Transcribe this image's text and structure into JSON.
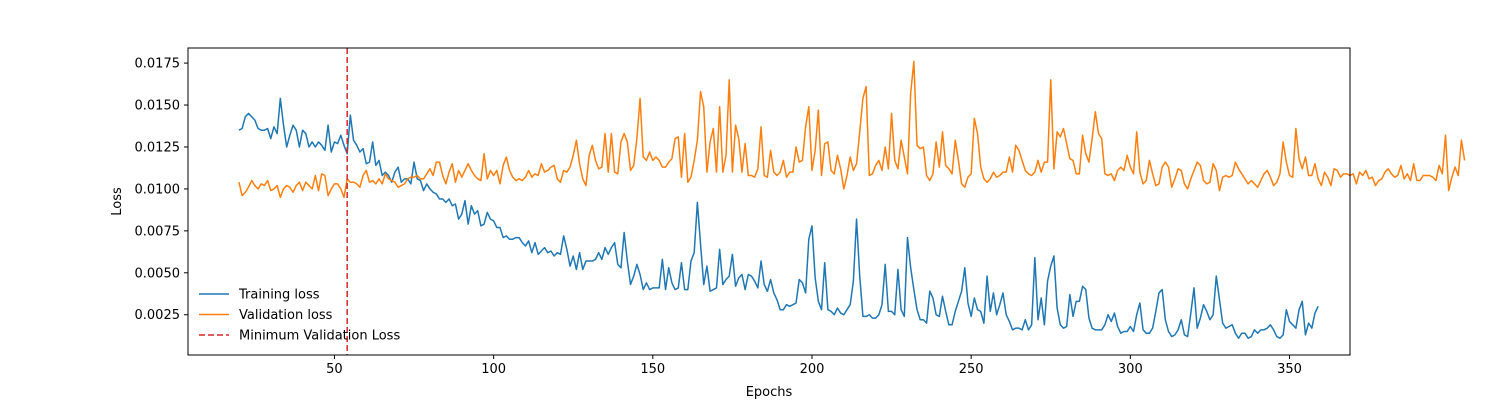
{
  "chart_data": {
    "type": "line",
    "title": "",
    "xlabel": "Epochs",
    "ylabel": "Loss",
    "xlim": [
      4,
      369
    ],
    "ylim": [
      0.0001,
      0.0184
    ],
    "x_ticks": [
      50,
      100,
      150,
      200,
      250,
      300,
      350
    ],
    "x_tick_labels": [
      "50",
      "100",
      "150",
      "200",
      "250",
      "300",
      "350"
    ],
    "y_ticks": [
      0.0025,
      0.005,
      0.0075,
      0.01,
      0.0125,
      0.015,
      0.0175
    ],
    "y_tick_labels": [
      "0.0025",
      "0.0050",
      "0.0075",
      "0.0100",
      "0.0125",
      "0.0150",
      "0.0175"
    ],
    "grid": false,
    "legend_position": "lower-left",
    "x_start": 20,
    "series": [
      {
        "name": "Training loss",
        "color": "#1f77b4",
        "values": [
          0.0135,
          0.0136,
          0.0143,
          0.0145,
          0.0143,
          0.0141,
          0.0136,
          0.0135,
          0.0135,
          0.0136,
          0.013,
          0.0137,
          0.0133,
          0.0154,
          0.0138,
          0.0125,
          0.0132,
          0.0138,
          0.0135,
          0.0125,
          0.0135,
          0.0133,
          0.0125,
          0.0128,
          0.0125,
          0.0128,
          0.0126,
          0.0123,
          0.0138,
          0.0122,
          0.0128,
          0.0127,
          0.0132,
          0.0126,
          0.0121,
          0.0144,
          0.0129,
          0.0126,
          0.0122,
          0.0124,
          0.0115,
          0.0116,
          0.0128,
          0.0114,
          0.0117,
          0.0108,
          0.011,
          0.0108,
          0.0104,
          0.011,
          0.0113,
          0.0104,
          0.0106,
          0.0106,
          0.0103,
          0.0116,
          0.0106,
          0.0105,
          0.0099,
          0.0103,
          0.01,
          0.0098,
          0.0097,
          0.0094,
          0.0094,
          0.0092,
          0.0094,
          0.009,
          0.0091,
          0.0082,
          0.0085,
          0.0093,
          0.0079,
          0.009,
          0.0085,
          0.0087,
          0.0078,
          0.0079,
          0.0086,
          0.0082,
          0.0081,
          0.0077,
          0.0077,
          0.0071,
          0.0072,
          0.007,
          0.007,
          0.0071,
          0.0071,
          0.0068,
          0.0066,
          0.0069,
          0.0062,
          0.0068,
          0.0061,
          0.0063,
          0.0065,
          0.0062,
          0.0063,
          0.006,
          0.0062,
          0.0061,
          0.0072,
          0.0064,
          0.0054,
          0.006,
          0.0052,
          0.0062,
          0.0052,
          0.0057,
          0.0057,
          0.0057,
          0.0058,
          0.0062,
          0.0058,
          0.0065,
          0.0061,
          0.0065,
          0.0068,
          0.0055,
          0.0053,
          0.0074,
          0.0057,
          0.0043,
          0.0048,
          0.0055,
          0.0049,
          0.004,
          0.0044,
          0.004,
          0.0041,
          0.0041,
          0.0041,
          0.0058,
          0.004,
          0.0053,
          0.0044,
          0.004,
          0.0041,
          0.0056,
          0.004,
          0.004,
          0.0057,
          0.0062,
          0.0092,
          0.0067,
          0.0043,
          0.0054,
          0.0039,
          0.004,
          0.0041,
          0.0064,
          0.0043,
          0.0046,
          0.0048,
          0.0061,
          0.0042,
          0.0047,
          0.0049,
          0.004,
          0.0049,
          0.0048,
          0.0045,
          0.0041,
          0.0057,
          0.0043,
          0.0039,
          0.0046,
          0.0038,
          0.0034,
          0.0028,
          0.0028,
          0.0031,
          0.003,
          0.0031,
          0.0032,
          0.0046,
          0.0044,
          0.0038,
          0.007,
          0.0078,
          0.0047,
          0.0033,
          0.0028,
          0.0056,
          0.0028,
          0.0027,
          0.0025,
          0.0029,
          0.0026,
          0.0025,
          0.0028,
          0.0031,
          0.0045,
          0.0082,
          0.0048,
          0.0024,
          0.0024,
          0.0025,
          0.0023,
          0.0023,
          0.0025,
          0.0031,
          0.0055,
          0.0027,
          0.0027,
          0.0025,
          0.0052,
          0.0028,
          0.0024,
          0.0071,
          0.0053,
          0.004,
          0.0028,
          0.0022,
          0.0022,
          0.002,
          0.0039,
          0.0035,
          0.0025,
          0.0024,
          0.0036,
          0.0027,
          0.0019,
          0.0019,
          0.0027,
          0.0033,
          0.0039,
          0.0053,
          0.0032,
          0.0024,
          0.0035,
          0.0028,
          0.0027,
          0.002,
          0.0048,
          0.0027,
          0.0038,
          0.0025,
          0.0031,
          0.0038,
          0.0025,
          0.0021,
          0.0016,
          0.0017,
          0.0017,
          0.0016,
          0.0022,
          0.0016,
          0.0019,
          0.0059,
          0.0022,
          0.0035,
          0.0019,
          0.0045,
          0.0054,
          0.006,
          0.0029,
          0.0019,
          0.0017,
          0.0018,
          0.0037,
          0.0024,
          0.0033,
          0.0033,
          0.0042,
          0.004,
          0.0023,
          0.0017,
          0.0016,
          0.0016,
          0.0016,
          0.0019,
          0.0025,
          0.0021,
          0.0026,
          0.0018,
          0.0014,
          0.0015,
          0.0015,
          0.0018,
          0.0015,
          0.0025,
          0.0032,
          0.0016,
          0.0014,
          0.0014,
          0.0017,
          0.0027,
          0.0038,
          0.004,
          0.0022,
          0.0015,
          0.0012,
          0.0013,
          0.0016,
          0.0022,
          0.0013,
          0.0012,
          0.0026,
          0.0041,
          0.0017,
          0.0023,
          0.0031,
          0.0027,
          0.0022,
          0.0025,
          0.0048,
          0.0034,
          0.002,
          0.0017,
          0.0018,
          0.0019,
          0.0014,
          0.0011,
          0.0014,
          0.0014,
          0.0011,
          0.0012,
          0.0016,
          0.0014,
          0.0016,
          0.0016,
          0.0017,
          0.0019,
          0.0016,
          0.0012,
          0.0011,
          0.0013,
          0.0028,
          0.0021,
          0.0019,
          0.0017,
          0.0028,
          0.0033,
          0.0013,
          0.002,
          0.0017,
          0.0026,
          0.003
        ]
      },
      {
        "name": "Validation loss",
        "color": "#ff7f0e",
        "values": [
          0.0104,
          0.0096,
          0.0098,
          0.0101,
          0.0105,
          0.0102,
          0.01,
          0.0103,
          0.0102,
          0.0105,
          0.0099,
          0.01,
          0.0102,
          0.0095,
          0.01,
          0.0102,
          0.0101,
          0.0098,
          0.0102,
          0.0104,
          0.0099,
          0.0104,
          0.0102,
          0.01,
          0.0108,
          0.0099,
          0.0109,
          0.0108,
          0.0096,
          0.01,
          0.0103,
          0.0103,
          0.01,
          0.0095,
          0.0106,
          0.0104,
          0.0104,
          0.0103,
          0.0101,
          0.0108,
          0.0111,
          0.0104,
          0.0105,
          0.0103,
          0.0106,
          0.0103,
          0.0109,
          0.0106,
          0.0105,
          0.0104,
          0.0101,
          0.0102,
          0.0103,
          0.0106,
          0.0107,
          0.0107,
          0.0108,
          0.0106,
          0.0106,
          0.0109,
          0.0112,
          0.0108,
          0.0116,
          0.0116,
          0.0108,
          0.0103,
          0.011,
          0.0115,
          0.0104,
          0.0111,
          0.0107,
          0.0111,
          0.0115,
          0.0111,
          0.0108,
          0.0106,
          0.0105,
          0.0121,
          0.0106,
          0.0111,
          0.0108,
          0.0111,
          0.0103,
          0.0114,
          0.0119,
          0.0111,
          0.0107,
          0.0105,
          0.0106,
          0.0105,
          0.0107,
          0.0111,
          0.0107,
          0.0109,
          0.0108,
          0.0115,
          0.011,
          0.0111,
          0.0113,
          0.0114,
          0.0106,
          0.0104,
          0.0111,
          0.011,
          0.0113,
          0.012,
          0.0129,
          0.0115,
          0.0106,
          0.0102,
          0.012,
          0.0126,
          0.0117,
          0.0112,
          0.0113,
          0.0133,
          0.011,
          0.0133,
          0.011,
          0.0109,
          0.0128,
          0.0133,
          0.0128,
          0.0111,
          0.0114,
          0.013,
          0.0154,
          0.0119,
          0.0117,
          0.0122,
          0.0117,
          0.0119,
          0.0117,
          0.0113,
          0.0113,
          0.0116,
          0.0118,
          0.013,
          0.0131,
          0.0107,
          0.0133,
          0.0104,
          0.0107,
          0.0117,
          0.0129,
          0.0158,
          0.0149,
          0.011,
          0.0128,
          0.0136,
          0.011,
          0.0149,
          0.011,
          0.012,
          0.0165,
          0.011,
          0.0138,
          0.013,
          0.011,
          0.0127,
          0.0108,
          0.0108,
          0.0107,
          0.0112,
          0.0137,
          0.0108,
          0.0107,
          0.0123,
          0.011,
          0.0108,
          0.011,
          0.0117,
          0.0107,
          0.011,
          0.011,
          0.0125,
          0.0116,
          0.0117,
          0.0137,
          0.0149,
          0.0111,
          0.0123,
          0.0147,
          0.0108,
          0.0127,
          0.0128,
          0.0111,
          0.0109,
          0.012,
          0.0112,
          0.01,
          0.0108,
          0.0119,
          0.0111,
          0.0115,
          0.0134,
          0.0154,
          0.0161,
          0.0108,
          0.0109,
          0.0114,
          0.0117,
          0.0111,
          0.0125,
          0.0112,
          0.0145,
          0.0117,
          0.0112,
          0.0129,
          0.0119,
          0.0109,
          0.0157,
          0.0176,
          0.0126,
          0.0124,
          0.0125,
          0.0108,
          0.0105,
          0.0109,
          0.0128,
          0.0113,
          0.0134,
          0.0114,
          0.0112,
          0.0109,
          0.0129,
          0.0117,
          0.0103,
          0.0101,
          0.0107,
          0.0109,
          0.0142,
          0.0133,
          0.0113,
          0.0106,
          0.0104,
          0.0106,
          0.011,
          0.0107,
          0.0108,
          0.011,
          0.011,
          0.0119,
          0.011,
          0.0126,
          0.0123,
          0.0117,
          0.0111,
          0.0109,
          0.0108,
          0.011,
          0.0117,
          0.011,
          0.0116,
          0.0116,
          0.0165,
          0.0112,
          0.0134,
          0.0131,
          0.0136,
          0.0127,
          0.0118,
          0.0117,
          0.0109,
          0.0109,
          0.0132,
          0.0121,
          0.0116,
          0.013,
          0.0146,
          0.0133,
          0.013,
          0.0109,
          0.0108,
          0.0109,
          0.0105,
          0.0111,
          0.0113,
          0.0111,
          0.012,
          0.0113,
          0.0109,
          0.0134,
          0.011,
          0.0103,
          0.0105,
          0.0117,
          0.0109,
          0.0102,
          0.0103,
          0.0113,
          0.0116,
          0.0113,
          0.0101,
          0.0106,
          0.0112,
          0.0111,
          0.0103,
          0.01,
          0.0106,
          0.0111,
          0.0116,
          0.0114,
          0.0105,
          0.0103,
          0.0104,
          0.0115,
          0.0111,
          0.0099,
          0.0107,
          0.0108,
          0.0107,
          0.0108,
          0.0116,
          0.0112,
          0.0109,
          0.0106,
          0.0103,
          0.0105,
          0.0103,
          0.0101,
          0.0105,
          0.0109,
          0.0111,
          0.0107,
          0.0102,
          0.0104,
          0.0109,
          0.0128,
          0.0116,
          0.0108,
          0.0107,
          0.0136,
          0.0118,
          0.0112,
          0.0119,
          0.0108,
          0.0108,
          0.0115,
          0.0106,
          0.0102,
          0.011,
          0.0107,
          0.0102,
          0.0112,
          0.0111,
          0.0107,
          0.0109,
          0.0109,
          0.0108,
          0.0109,
          0.0103,
          0.011,
          0.0108,
          0.0111,
          0.0106,
          0.0107,
          0.0102,
          0.0105,
          0.0106,
          0.011,
          0.0112,
          0.0109,
          0.0107,
          0.0108,
          0.0114,
          0.0106,
          0.0109,
          0.0105,
          0.0115,
          0.0105,
          0.0105,
          0.0108,
          0.0108,
          0.0108,
          0.0107,
          0.0105,
          0.0114,
          0.0109,
          0.0132,
          0.0099,
          0.0107,
          0.0113,
          0.0108,
          0.0129,
          0.0117
        ]
      }
    ],
    "vertical_line": {
      "name": "Minimum Validation Loss",
      "x": 54,
      "color": "#d62728",
      "style": "dashed"
    }
  }
}
